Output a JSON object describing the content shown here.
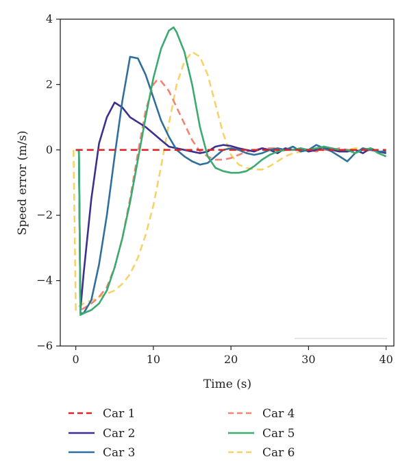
{
  "chart_data": {
    "type": "line",
    "title": "",
    "xlabel": "Time (s)",
    "ylabel": "Speed error (m/s)",
    "xlim": [
      -2,
      41
    ],
    "ylim": [
      -6,
      4
    ],
    "xticks": [
      0,
      10,
      20,
      30,
      40
    ],
    "yticks": [
      4,
      2,
      0,
      -2,
      -4,
      -6
    ],
    "xtick_labels": [
      "0",
      "10",
      "20",
      "30",
      "40"
    ],
    "ytick_labels": [
      "4",
      "2",
      "0",
      "−2",
      "−4",
      "−6"
    ],
    "grid": false,
    "legend_position": "below",
    "series": [
      {
        "name": "Car 1",
        "color": "#d62728",
        "dash": "dashed",
        "x": [
          0,
          2,
          5,
          10,
          15,
          20,
          25,
          30,
          35,
          40
        ],
        "y": [
          0,
          0,
          0,
          0,
          0,
          0,
          0,
          0,
          0,
          0
        ]
      },
      {
        "name": "Car 2",
        "color": "#3b2f8f",
        "dash": "solid",
        "x": [
          0,
          0.4,
          0.6,
          1,
          2,
          3,
          4,
          5,
          6,
          7,
          8,
          9,
          10,
          11,
          12,
          13,
          14,
          15,
          16,
          17,
          18,
          19,
          20,
          21,
          22,
          23,
          24,
          25,
          26,
          27,
          28,
          29,
          30,
          31,
          32,
          33,
          34,
          35,
          36,
          37,
          38,
          39,
          40
        ],
        "y": [
          0,
          0,
          -4.9,
          -3.8,
          -1.5,
          0.2,
          1.0,
          1.45,
          1.3,
          1.0,
          0.85,
          0.7,
          0.5,
          0.3,
          0.1,
          0.05,
          0.0,
          -0.05,
          -0.1,
          -0.05,
          0.1,
          0.15,
          0.12,
          0.05,
          0.0,
          -0.05,
          0.05,
          0.0,
          -0.1,
          0.05,
          0.0,
          0.05,
          -0.05,
          0.0,
          0.1,
          0.0,
          -0.05,
          -0.05,
          0.0,
          -0.1,
          0.05,
          -0.05,
          -0.1
        ]
      },
      {
        "name": "Car 3",
        "color": "#2e6f9e",
        "dash": "solid",
        "x": [
          0,
          0.4,
          0.6,
          1,
          2,
          3,
          4,
          5,
          6,
          7,
          8,
          9,
          10,
          11,
          12,
          13,
          14,
          15,
          16,
          17,
          18,
          19,
          20,
          21,
          22,
          23,
          24,
          25,
          26,
          27,
          28,
          29,
          30,
          31,
          32,
          33,
          34,
          35,
          36,
          37,
          38,
          39,
          40
        ],
        "y": [
          0,
          0,
          -5.0,
          -5.0,
          -4.6,
          -3.5,
          -2.0,
          -0.2,
          1.5,
          2.85,
          2.8,
          2.3,
          1.6,
          0.9,
          0.4,
          0.0,
          -0.2,
          -0.35,
          -0.45,
          -0.4,
          -0.2,
          0.0,
          0.05,
          0.0,
          -0.1,
          -0.15,
          -0.1,
          0.0,
          0.05,
          0.0,
          0.1,
          -0.05,
          0.0,
          0.15,
          0.05,
          -0.05,
          -0.2,
          -0.35,
          -0.1,
          0.05,
          0.0,
          -0.05,
          -0.05
        ]
      },
      {
        "name": "Car 4",
        "color": "#f4826f",
        "dash": "dashed",
        "x": [
          0,
          0.4,
          0.6,
          1,
          2,
          3,
          4,
          5,
          6,
          7,
          8,
          9,
          10,
          10.5,
          11,
          12,
          13,
          14,
          15,
          16,
          17,
          18,
          19,
          20,
          21,
          22,
          23,
          24,
          25,
          26,
          27,
          28,
          29,
          30,
          31,
          32,
          33,
          34,
          35,
          36,
          37,
          38,
          39,
          40
        ],
        "y": [
          0,
          0,
          -4.9,
          -4.85,
          -4.7,
          -4.5,
          -4.2,
          -3.6,
          -2.7,
          -1.5,
          -0.1,
          1.2,
          2.0,
          2.15,
          2.1,
          1.8,
          1.3,
          0.8,
          0.3,
          -0.05,
          -0.2,
          -0.3,
          -0.3,
          -0.25,
          -0.15,
          -0.05,
          0.0,
          0.05,
          0.05,
          0.05,
          0.0,
          0.0,
          0.0,
          0.0,
          -0.05,
          0.0,
          0.0,
          0.05,
          0.0,
          0.0,
          -0.05,
          0.0,
          -0.05,
          -0.1
        ]
      },
      {
        "name": "Car 5",
        "color": "#3aaa6e",
        "dash": "solid",
        "x": [
          0,
          0.4,
          0.6,
          1,
          2,
          3,
          4,
          5,
          6,
          7,
          8,
          9,
          10,
          11,
          12,
          12.6,
          13,
          14,
          15,
          16,
          17,
          18,
          19,
          20,
          21,
          22,
          23,
          24,
          25,
          26,
          27,
          28,
          29,
          30,
          31,
          32,
          33,
          34,
          35,
          36,
          37,
          38,
          39,
          40
        ],
        "y": [
          0,
          0,
          -5.05,
          -5.0,
          -4.9,
          -4.7,
          -4.3,
          -3.6,
          -2.7,
          -1.6,
          -0.3,
          1.0,
          2.2,
          3.1,
          3.65,
          3.75,
          3.6,
          3.0,
          2.0,
          0.7,
          -0.2,
          -0.55,
          -0.65,
          -0.7,
          -0.7,
          -0.65,
          -0.5,
          -0.3,
          -0.15,
          -0.05,
          0.0,
          0.0,
          0.05,
          0.0,
          0.05,
          0.1,
          0.05,
          0.0,
          0.0,
          -0.1,
          0.0,
          0.05,
          -0.1,
          -0.2
        ]
      },
      {
        "name": "Car 6",
        "color": "#f6d36a",
        "dash": "dashed",
        "x": [
          -0.3,
          0,
          0.3,
          1,
          2,
          3,
          4,
          5,
          6,
          7,
          8,
          9,
          10,
          11,
          12,
          13,
          14,
          15,
          16,
          17,
          18,
          19,
          20,
          21,
          22,
          23,
          24,
          25,
          26,
          27,
          28,
          29,
          30,
          31,
          32,
          33,
          34,
          35,
          36,
          37,
          38,
          39,
          40
        ],
        "y": [
          0,
          -4.9,
          -4.8,
          -4.7,
          -4.6,
          -4.5,
          -4.4,
          -4.3,
          -4.1,
          -3.8,
          -3.3,
          -2.6,
          -1.7,
          -0.5,
          0.8,
          2.0,
          2.7,
          3.0,
          2.85,
          2.3,
          1.4,
          0.5,
          -0.15,
          -0.45,
          -0.55,
          -0.6,
          -0.6,
          -0.5,
          -0.35,
          -0.2,
          -0.1,
          -0.05,
          0.0,
          0.05,
          0.05,
          0.05,
          0.0,
          0.0,
          0.05,
          0.05,
          0.0,
          -0.05,
          -0.1
        ]
      }
    ]
  }
}
